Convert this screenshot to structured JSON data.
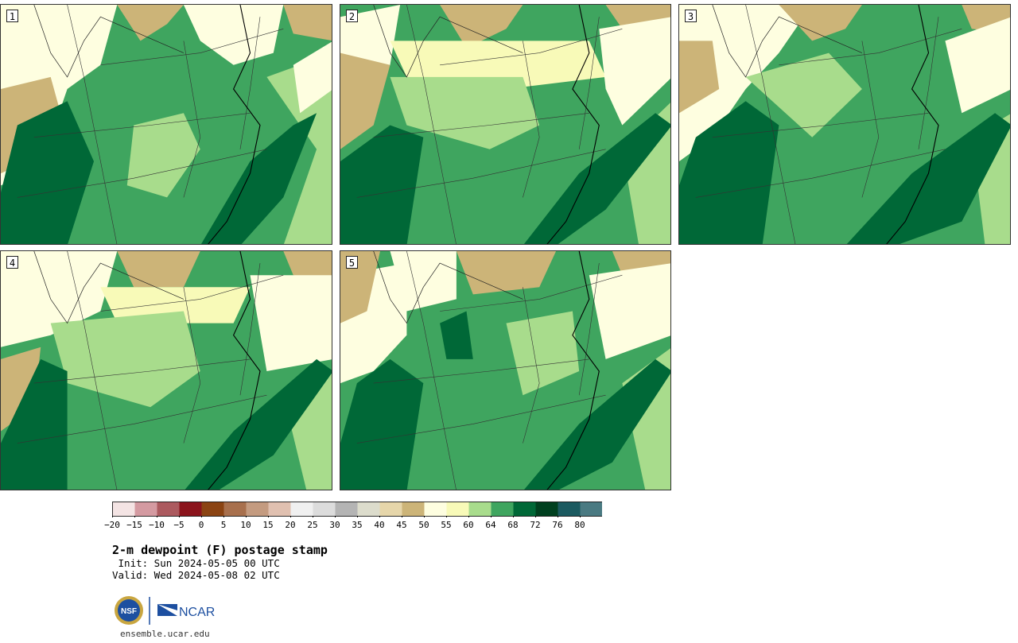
{
  "panels": [
    {
      "label": "1"
    },
    {
      "label": "2"
    },
    {
      "label": "3"
    },
    {
      "label": "4"
    },
    {
      "label": "5"
    }
  ],
  "colorbar": {
    "ticks": [
      "-20",
      "-15",
      "-10",
      "-5",
      "0",
      "5",
      "10",
      "15",
      "20",
      "25",
      "30",
      "35",
      "40",
      "45",
      "50",
      "55",
      "60",
      "64",
      "68",
      "72",
      "76",
      "80"
    ],
    "colors": [
      "#f4e4e4",
      "#d49aa1",
      "#ac5a5f",
      "#8b141c",
      "#8b4413",
      "#a8704d",
      "#c49b80",
      "#e0c0b0",
      "#f0f0f0",
      "#dcdcdc",
      "#b4b4b4",
      "#dcdccc",
      "#e6d6aa",
      "#ccb478",
      "#fefee0",
      "#f8fab8",
      "#a8dc8c",
      "#3fa55f",
      "#006837",
      "#00401f",
      "#1b5a60",
      "#4a7a82"
    ]
  },
  "title": "2-m dewpoint (F) postage stamp",
  "init": " Init: Sun 2024-05-05 00 UTC",
  "valid": "Valid: Wed 2024-05-08 02 UTC",
  "logos": {
    "nsf": "NSF",
    "ncar": "NCAR"
  },
  "site": "ensemble.ucar.edu"
}
